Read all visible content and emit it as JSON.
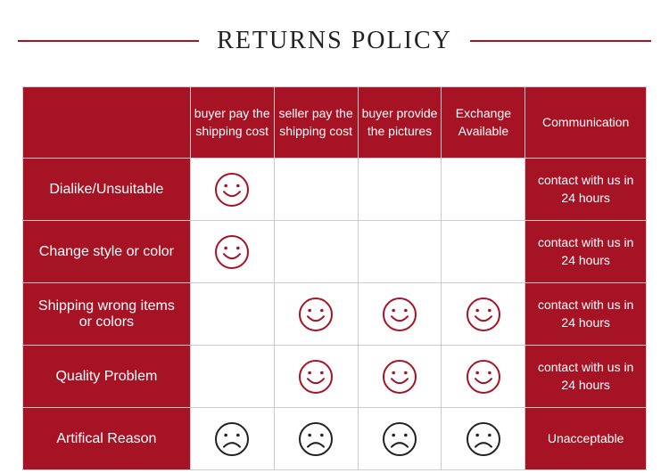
{
  "title": "RETURNS POLICY",
  "colors": {
    "red": "#a61325",
    "white": "#ffffff",
    "border": "#cccccc",
    "black": "#222222",
    "title_line": "#a61325"
  },
  "icon": {
    "smile": {
      "stroke": "#a61325",
      "stroke_width": 2,
      "size": 40
    },
    "frown": {
      "stroke": "#222222",
      "stroke_width": 2,
      "size": 40
    }
  },
  "columns": [
    "buyer pay the shipping cost",
    "seller pay the shipping cost",
    "buyer provide the pictures",
    "Exchange Available",
    "Communication"
  ],
  "rows": [
    {
      "label": "Dialike/Unsuitable",
      "cells": [
        "smile",
        "",
        "",
        "",
        ""
      ],
      "comm": "contact with us in 24 hours"
    },
    {
      "label": "Change style or color",
      "cells": [
        "smile",
        "",
        "",
        "",
        ""
      ],
      "comm": "contact with us in 24 hours"
    },
    {
      "label": "Shipping wrong items or colors",
      "cells": [
        "",
        "smile",
        "smile",
        "smile",
        ""
      ],
      "comm": "contact with us in 24 hours"
    },
    {
      "label": "Quality Problem",
      "cells": [
        "",
        "smile",
        "smile",
        "smile",
        ""
      ],
      "comm": "contact with us in 24 hours"
    },
    {
      "label": "Artifical Reason",
      "cells": [
        "frown",
        "frown",
        "frown",
        "frown",
        ""
      ],
      "comm": "Unacceptable"
    }
  ]
}
